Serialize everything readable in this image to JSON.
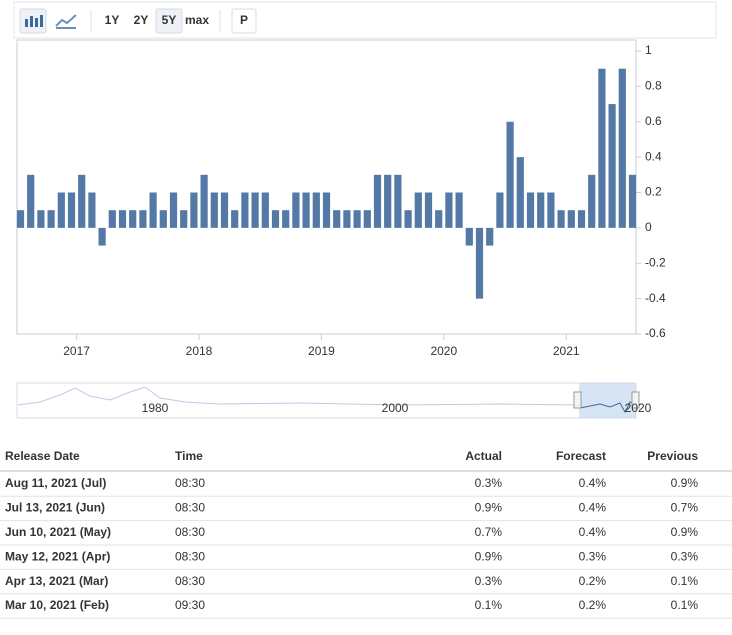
{
  "toolbar": {
    "buttons": [
      "1Y",
      "2Y",
      "5Y",
      "max",
      "P"
    ]
  },
  "chart_data": {
    "type": "bar",
    "color": "#5479a6",
    "values": [
      0.1,
      0.3,
      0.1,
      0.1,
      0.2,
      0.2,
      0.3,
      0.2,
      -0.1,
      0.1,
      0.1,
      0.1,
      0.1,
      0.2,
      0.1,
      0.2,
      0.1,
      0.2,
      0.3,
      0.2,
      0.2,
      0.1,
      0.2,
      0.2,
      0.2,
      0.1,
      0.1,
      0.2,
      0.2,
      0.2,
      0.2,
      0.1,
      0.1,
      0.1,
      0.1,
      0.3,
      0.3,
      0.3,
      0.1,
      0.2,
      0.2,
      0.1,
      0.2,
      0.2,
      -0.1,
      -0.4,
      -0.1,
      0.2,
      0.6,
      0.4,
      0.2,
      0.2,
      0.2,
      0.1,
      0.1,
      0.1,
      0.3,
      0.9,
      0.7,
      0.9,
      0.3
    ],
    "ylim": [
      -0.6,
      1
    ],
    "yticks": [
      1,
      0.8,
      0.6,
      0.4,
      0.2,
      0,
      -0.2,
      -0.4,
      -0.6
    ],
    "xticks": [
      2017,
      2018,
      2019,
      2020,
      2021
    ],
    "navigator_labels": [
      "1980",
      "2000",
      "2020"
    ]
  },
  "table": {
    "header": [
      "Release Date",
      "Time",
      "Actual",
      "Forecast",
      "Previous"
    ],
    "rows": [
      {
        "cells": [
          "Aug 11, 2021 (Jul)",
          "08:30",
          "0.3%",
          "0.4%",
          "0.9%"
        ],
        "actual_color": "#e53935"
      },
      {
        "cells": [
          "Jul 13, 2021 (Jun)",
          "08:30",
          "0.9%",
          "0.4%",
          "0.7%"
        ],
        "actual_color": "#2eaa2e"
      },
      {
        "cells": [
          "Jun 10, 2021 (May)",
          "08:30",
          "0.7%",
          "0.4%",
          "0.9%"
        ],
        "actual_color": "#2eaa2e"
      },
      {
        "cells": [
          "May 12, 2021 (Apr)",
          "08:30",
          "0.9%",
          "0.3%",
          "0.3%"
        ],
        "actual_color": "#2eaa2e"
      },
      {
        "cells": [
          "Apr 13, 2021 (Mar)",
          "08:30",
          "0.3%",
          "0.2%",
          "0.1%"
        ],
        "actual_color": "#2eaa2e"
      },
      {
        "cells": [
          "Mar 10, 2021 (Feb)",
          "09:30",
          "0.1%",
          "0.2%",
          "0.1%"
        ],
        "actual_color": "#e53935"
      }
    ]
  }
}
